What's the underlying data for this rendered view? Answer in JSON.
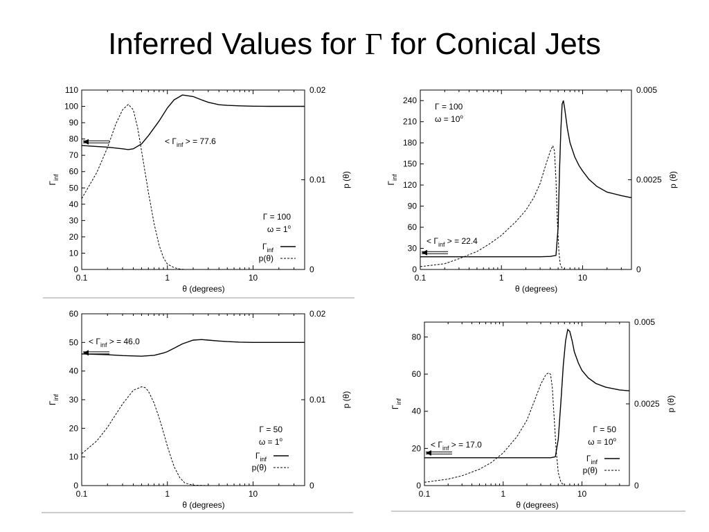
{
  "slide": {
    "title_pre": "Inferred Values for ",
    "title_symbol": "Γ",
    "title_post": " for Conical Jets"
  },
  "chart_data": [
    {
      "type": "line",
      "x_scale": "log",
      "xlim": [
        0.1,
        40
      ],
      "ylim": [
        0,
        110
      ],
      "y2lim": [
        0,
        0.02
      ],
      "x_ticks": [
        "0.1",
        "1",
        "10"
      ],
      "y_ticks": [
        "0",
        "10",
        "20",
        "30",
        "40",
        "50",
        "60",
        "70",
        "80",
        "90",
        "100",
        "110"
      ],
      "y2_ticks": [
        "0",
        "0.01",
        "0.02"
      ],
      "xlabel": "θ (degrees)",
      "ylabel_main": "Γ",
      "ylabel_sub": "inf",
      "y2label": "p (θ)",
      "params": [
        "Γ = 100",
        "ω = 1"
      ],
      "param_sup": "o",
      "mean_label": "< Γ",
      "mean_label_sub": "inf",
      "mean_label_post": " > = 77.6",
      "mean_value": 77.6,
      "legend": [
        "Γinf",
        "p(θ)"
      ],
      "series": [
        {
          "name": "Γinf",
          "axis": "left",
          "style": "solid",
          "x": [
            0.1,
            0.2,
            0.3,
            0.35,
            0.4,
            0.5,
            0.6,
            0.8,
            1.0,
            1.2,
            1.5,
            2.0,
            2.5,
            3,
            4,
            5,
            7,
            10,
            15,
            20,
            40
          ],
          "y": [
            76,
            75,
            74,
            73.5,
            74,
            77,
            82,
            91,
            99,
            104,
            107,
            106,
            104,
            102.5,
            101,
            100.6,
            100.3,
            100.1,
            100,
            100,
            100
          ]
        },
        {
          "name": "p(θ)",
          "axis": "right",
          "style": "dotted",
          "x": [
            0.1,
            0.15,
            0.2,
            0.25,
            0.3,
            0.35,
            0.4,
            0.45,
            0.5,
            0.6,
            0.7,
            0.8,
            0.9,
            1.0,
            1.2,
            1.4,
            1.6,
            2,
            3,
            5,
            10,
            40
          ],
          "y": [
            0.0079,
            0.0108,
            0.0136,
            0.0162,
            0.0178,
            0.0184,
            0.0178,
            0.0158,
            0.0132,
            0.0086,
            0.0051,
            0.0027,
            0.0013,
            0.0006,
            0.0002,
            5e-05,
            0,
            0,
            0,
            0,
            0,
            0
          ]
        }
      ]
    },
    {
      "type": "line",
      "x_scale": "log",
      "xlim": [
        0.1,
        40
      ],
      "ylim": [
        0,
        255
      ],
      "y2lim": [
        0,
        0.005
      ],
      "x_ticks": [
        "0.1",
        "1",
        "10"
      ],
      "y_ticks": [
        "0",
        "30",
        "60",
        "90",
        "120",
        "150",
        "180",
        "210",
        "240"
      ],
      "y2_ticks": [
        "0",
        "0.0025",
        "0.005"
      ],
      "xlabel": "θ (degrees)",
      "ylabel_main": "Γ",
      "ylabel_sub": "inf",
      "y2label": "p (θ)",
      "params": [
        "Γ = 100",
        "ω = 10"
      ],
      "param_sup": "o",
      "mean_label": "< Γ",
      "mean_label_sub": "inf",
      "mean_label_post": " > = 22.4",
      "mean_value": 22.4,
      "legend": [],
      "series": [
        {
          "name": "Γinf",
          "axis": "left",
          "style": "solid",
          "x": [
            0.1,
            1,
            2,
            3,
            4,
            4.7,
            5.0,
            5.2,
            5.4,
            5.6,
            5.8,
            6.0,
            6.5,
            7,
            8,
            9,
            10,
            12,
            15,
            20,
            30,
            40
          ],
          "y": [
            18,
            18,
            18,
            18,
            18.5,
            20,
            60,
            140,
            200,
            235,
            240,
            230,
            200,
            180,
            160,
            148,
            140,
            128,
            118,
            110,
            105,
            102
          ]
        },
        {
          "name": "p(θ)",
          "axis": "right",
          "style": "dotted",
          "x": [
            0.1,
            0.2,
            0.3,
            0.5,
            0.7,
            1,
            1.5,
            2,
            2.5,
            3,
            3.5,
            4,
            4.3,
            4.5,
            4.7,
            4.9,
            5.1,
            5.3,
            5.6,
            6,
            40
          ],
          "y": [
            8e-05,
            0.00016,
            0.0003,
            0.0005,
            0.0007,
            0.00095,
            0.00133,
            0.00165,
            0.002,
            0.0024,
            0.0029,
            0.0033,
            0.00345,
            0.0033,
            0.0025,
            0.0013,
            0.0005,
            0.00015,
            3e-05,
            0,
            0
          ]
        }
      ]
    },
    {
      "type": "line",
      "x_scale": "log",
      "xlim": [
        0.1,
        40
      ],
      "ylim": [
        0,
        60
      ],
      "y2lim": [
        0,
        0.02
      ],
      "x_ticks": [
        "0.1",
        "1",
        "10"
      ],
      "y_ticks": [
        "0",
        "10",
        "20",
        "30",
        "40",
        "50",
        "60"
      ],
      "y2_ticks": [
        "0",
        "0.01",
        "0.02"
      ],
      "xlabel": "θ (degrees)",
      "ylabel_main": "Γ",
      "ylabel_sub": "inf",
      "y2label": "p (θ)",
      "params": [
        "Γ = 50",
        "ω = 1"
      ],
      "param_sup": "o",
      "mean_label": "< Γ",
      "mean_label_sub": "inf",
      "mean_label_post": " > = 46.0",
      "mean_value": 46.0,
      "legend": [
        "Γinf",
        "p(θ)"
      ],
      "series": [
        {
          "name": "Γinf",
          "axis": "left",
          "style": "solid",
          "x": [
            0.1,
            0.2,
            0.3,
            0.5,
            0.7,
            0.9,
            1.0,
            1.2,
            1.5,
            2.0,
            2.5,
            3,
            4,
            5,
            7,
            10,
            15,
            20,
            40
          ],
          "y": [
            46,
            45.7,
            45.4,
            45.2,
            45.5,
            46.3,
            46.8,
            48,
            49.5,
            50.8,
            51,
            50.8,
            50.5,
            50.3,
            50.1,
            50,
            50,
            50,
            50
          ]
        },
        {
          "name": "p(θ)",
          "axis": "right",
          "style": "dotted",
          "x": [
            0.1,
            0.15,
            0.2,
            0.3,
            0.4,
            0.5,
            0.55,
            0.6,
            0.7,
            0.8,
            0.9,
            1.0,
            1.1,
            1.2,
            1.4,
            1.6,
            2,
            3,
            10,
            40
          ],
          "y": [
            0.0037,
            0.0052,
            0.0068,
            0.0095,
            0.0111,
            0.0115,
            0.0114,
            0.011,
            0.0096,
            0.0079,
            0.0062,
            0.0046,
            0.0033,
            0.0022,
            0.0009,
            0.0003,
            5e-05,
            0,
            0,
            0
          ]
        }
      ]
    },
    {
      "type": "line",
      "x_scale": "log",
      "xlim": [
        0.1,
        40
      ],
      "ylim": [
        0,
        88
      ],
      "y2lim": [
        0,
        0.005
      ],
      "x_ticks": [
        "0.1",
        "1",
        "10"
      ],
      "y_ticks": [
        "0",
        "20",
        "40",
        "60",
        "80"
      ],
      "y2_ticks": [
        "0",
        "0.0025",
        "0.005"
      ],
      "xlabel": "θ (degrees)",
      "ylabel_main": "Γ",
      "ylabel_sub": "inf",
      "y2label": "p (θ)",
      "params": [
        "Γ = 50",
        "ω = 10"
      ],
      "param_sup": "o",
      "mean_label": "< Γ",
      "mean_label_sub": "inf",
      "mean_label_post": " > = 17.0",
      "mean_value": 17.0,
      "legend": [
        "Γinf",
        "p(θ)"
      ],
      "series": [
        {
          "name": "Γinf",
          "axis": "left",
          "style": "solid",
          "x": [
            0.1,
            1,
            2,
            3,
            4,
            4.6,
            5.0,
            5.4,
            5.8,
            6.2,
            6.6,
            7.0,
            7.5,
            8,
            9,
            10,
            12,
            15,
            20,
            30,
            40
          ],
          "y": [
            15,
            15,
            15,
            15,
            15,
            15.5,
            25,
            45,
            65,
            78,
            84,
            83,
            78,
            72,
            66,
            62,
            58,
            55,
            53,
            51.5,
            51
          ]
        },
        {
          "name": "p(θ)",
          "axis": "right",
          "style": "dotted",
          "x": [
            0.1,
            0.2,
            0.3,
            0.5,
            0.7,
            1,
            1.5,
            2,
            2.5,
            3,
            3.5,
            3.8,
            4.0,
            4.2,
            4.4,
            4.7,
            5.0,
            5.4,
            6,
            40
          ],
          "y": [
            0.0001,
            0.0002,
            0.0003,
            0.0005,
            0.0007,
            0.001,
            0.0015,
            0.002,
            0.0026,
            0.0031,
            0.0034,
            0.00345,
            0.0034,
            0.003,
            0.0022,
            0.0011,
            0.0004,
            0.0001,
            0,
            0
          ]
        }
      ]
    }
  ]
}
